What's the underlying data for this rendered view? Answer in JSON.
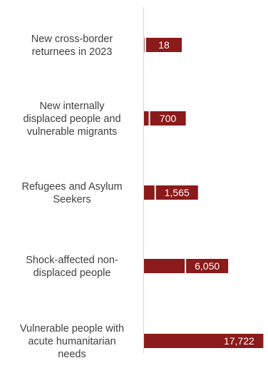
{
  "chart_data": {
    "type": "bar",
    "orientation": "horizontal",
    "title": "",
    "xlabel": "",
    "ylabel": "",
    "categories": [
      "New cross-border returnees in 2023",
      "New internally displaced people and vulnerable migrants",
      "Refugees and Asylum Seekers",
      "Shock-affected non-displaced people",
      "Vulnerable people with acute humanitarian needs"
    ],
    "category_lines": [
      [
        "New cross-border",
        "returnees in 2023"
      ],
      [
        "New internally",
        "displaced people and",
        "vulnerable migrants"
      ],
      [
        "Refugees and Asylum",
        "Seekers"
      ],
      [
        "Shock-affected non-",
        "displaced people"
      ],
      [
        "Vulnerable people with",
        "acute humanitarian",
        "needs"
      ]
    ],
    "values": [
      18,
      700,
      1565,
      6050,
      17722
    ],
    "value_labels": [
      "18",
      "700",
      "1,565",
      "6,050",
      "17,722"
    ],
    "xlim": [
      0,
      18000
    ],
    "grid": false,
    "legend": "none",
    "bar_color": "#8b1a1a"
  }
}
